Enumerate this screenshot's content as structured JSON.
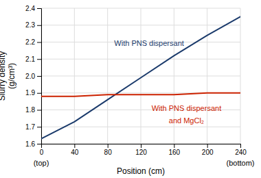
{
  "chart_data": {
    "type": "line",
    "x": [
      0,
      40,
      80,
      120,
      160,
      200,
      240
    ],
    "series": [
      {
        "color": "#1a3a6b",
        "values": [
          1.63,
          1.73,
          1.86,
          1.99,
          2.12,
          2.24,
          2.35
        ]
      },
      {
        "color": "#cc2200",
        "values": [
          1.88,
          1.88,
          1.89,
          1.89,
          1.89,
          1.9,
          1.9
        ]
      }
    ],
    "xlim": [
      0,
      240
    ],
    "ylim": [
      1.6,
      2.4
    ],
    "xticks": [
      0,
      40,
      80,
      120,
      160,
      200,
      240
    ],
    "yticks": [
      1.6,
      1.7,
      1.8,
      1.9,
      {
        "value": 2,
        "label": "2.0"
      },
      2.1,
      2.2,
      2.3,
      2.4
    ],
    "xlabel": "Position (cm)",
    "ylabel": "Slurry density\n(g/cm³)",
    "grid": true,
    "annotations": [
      {
        "text": "With PNS dispersant",
        "x": 130,
        "y": 2.17,
        "va": "bottom",
        "color": "#1a3a6b"
      },
      {
        "text": "With PNS dispersant",
        "x": 175,
        "y": 1.825,
        "va": "top",
        "color": "#cc2200"
      },
      {
        "text": "and MgCl₂",
        "x": 175,
        "y": 1.755,
        "va": "top",
        "color": "#cc2200"
      },
      {
        "text": "(top)",
        "x": 0
      },
      {
        "text": "(bottom)",
        "x": 240
      }
    ]
  }
}
